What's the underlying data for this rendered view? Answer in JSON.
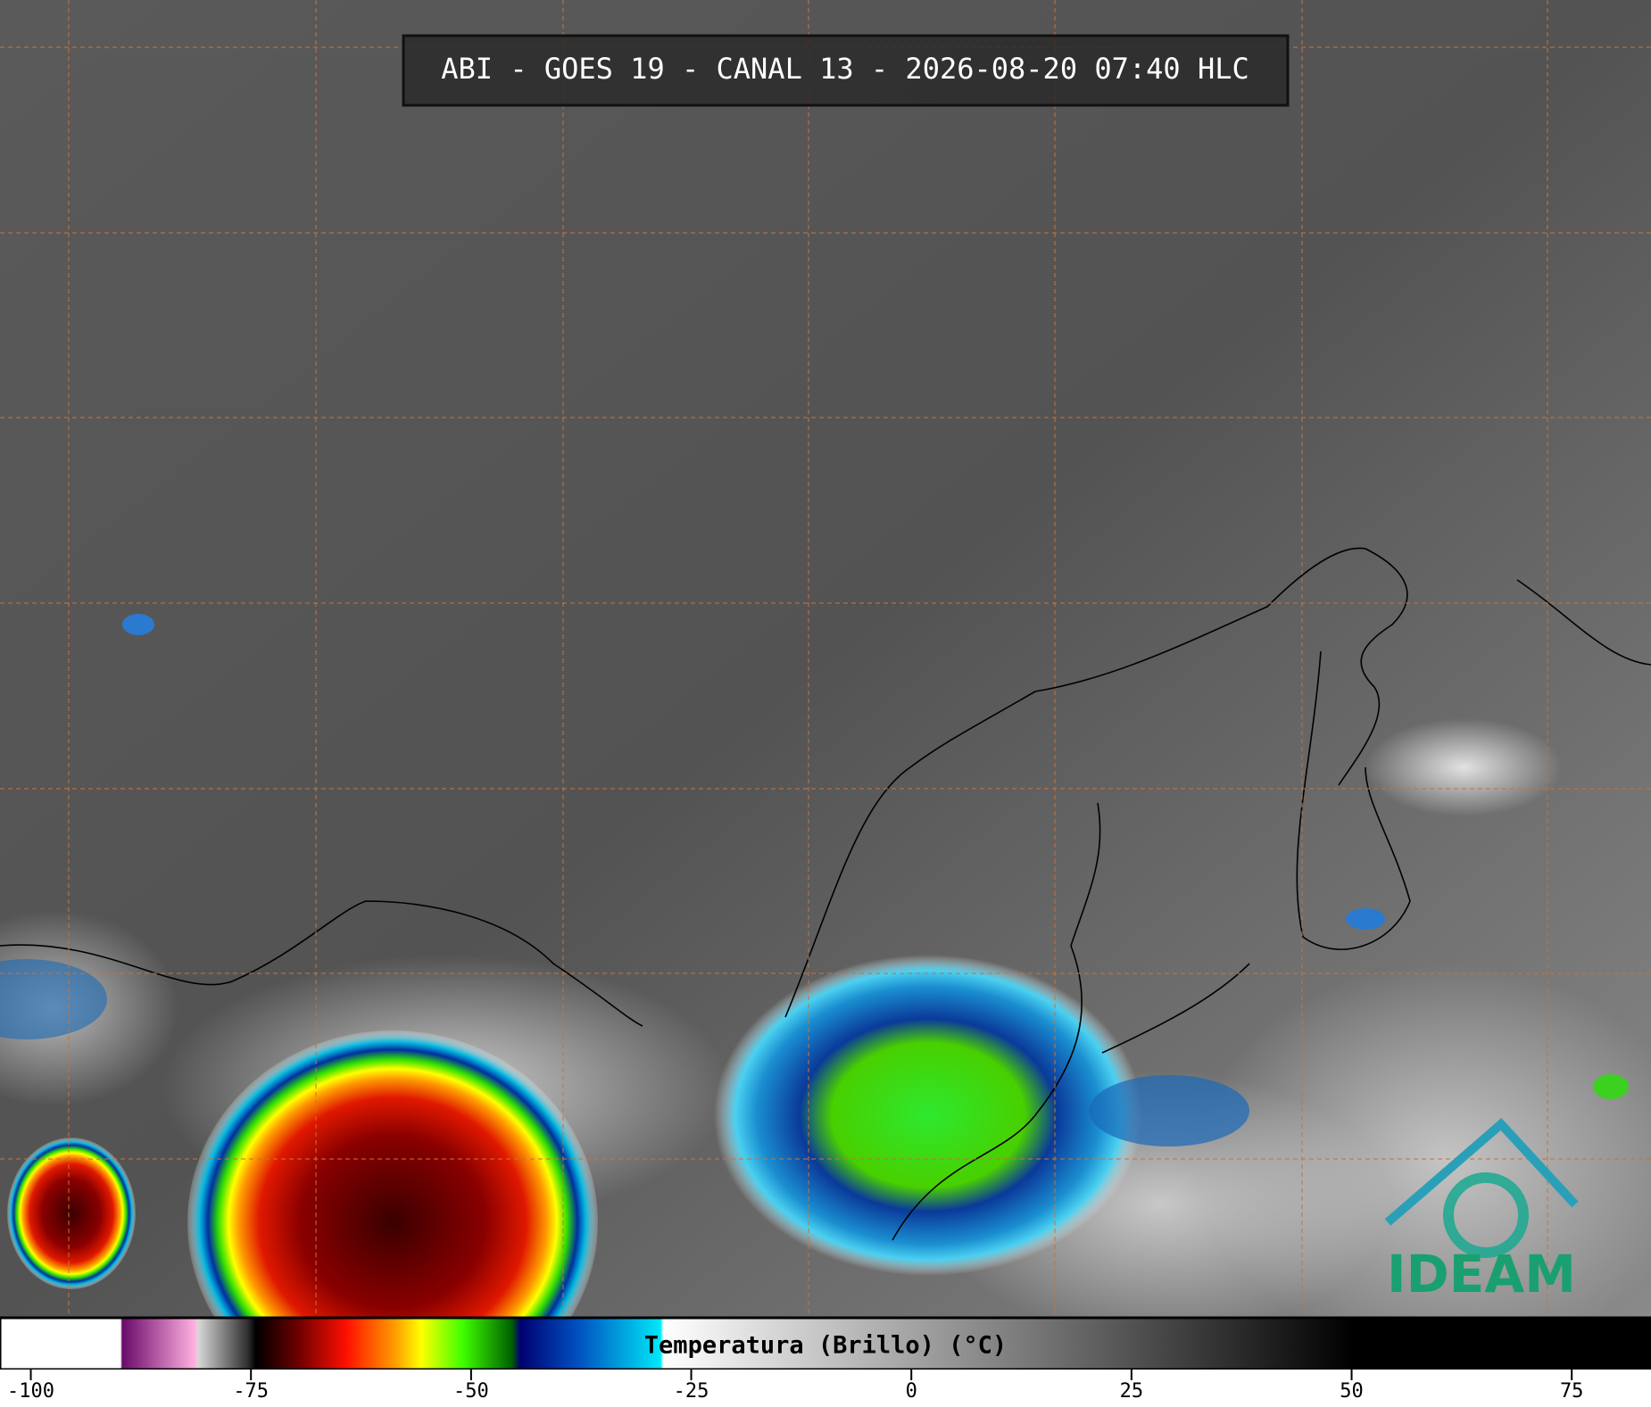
{
  "header": {
    "title": "ABI - GOES 19 - CANAL 13 - 2026-08-20 07:40 HLC"
  },
  "chart_data": {
    "type": "colorbar",
    "label": "Temperatura (Brillo) (°C)",
    "xlim": [
      -103.5,
      84
    ],
    "xticks": [
      -100,
      -75,
      -50,
      -25,
      0,
      25,
      50,
      75
    ]
  },
  "logo": {
    "text": "IDEAM"
  }
}
